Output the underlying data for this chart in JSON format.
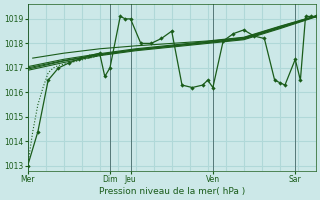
{
  "background_color": "#cce8e8",
  "grid_color": "#b0d8d8",
  "line_color": "#1a5c1a",
  "text_color": "#1a5c1a",
  "xlabel": "Pression niveau de la mer( hPa )",
  "ylim": [
    1012.8,
    1019.6
  ],
  "yticks": [
    1013,
    1014,
    1015,
    1016,
    1017,
    1018,
    1019
  ],
  "day_labels": [
    "Mer",
    "Dim",
    "Jeu",
    "Ven",
    "Sar"
  ],
  "day_positions": [
    0,
    96,
    120,
    216,
    312
  ],
  "day_vline_positions": [
    0,
    96,
    120,
    216,
    312
  ],
  "xlim": [
    0,
    336
  ],
  "total_hours": 336,
  "dotted_line_x": [
    0,
    6,
    12,
    18,
    24,
    30,
    36,
    42,
    48,
    54,
    60,
    66,
    72,
    78,
    84,
    90,
    96
  ],
  "dotted_line_y": [
    1013.0,
    1014.4,
    1015.5,
    1016.2,
    1016.8,
    1017.0,
    1017.1,
    1017.15,
    1017.2,
    1017.25,
    1017.3,
    1017.35,
    1017.4,
    1017.45,
    1017.5,
    1017.55,
    1017.6
  ],
  "smooth_lines": [
    {
      "x": [
        0,
        42,
        84,
        126,
        168,
        210,
        252,
        294,
        336
      ],
      "y": [
        1017.0,
        1017.3,
        1017.55,
        1017.75,
        1017.9,
        1018.05,
        1018.2,
        1018.65,
        1019.1
      ]
    },
    {
      "x": [
        0,
        42,
        84,
        126,
        168,
        210,
        252,
        294,
        336
      ],
      "y": [
        1017.05,
        1017.35,
        1017.58,
        1017.78,
        1017.93,
        1018.08,
        1018.23,
        1018.68,
        1019.12
      ]
    },
    {
      "x": [
        0,
        42,
        84,
        126,
        168,
        210,
        252,
        294,
        336
      ],
      "y": [
        1016.9,
        1017.22,
        1017.5,
        1017.7,
        1017.85,
        1018.0,
        1018.15,
        1018.6,
        1019.08
      ]
    },
    {
      "x": [
        0,
        42,
        84,
        126,
        168,
        210,
        252,
        294,
        336
      ],
      "y": [
        1016.95,
        1017.28,
        1017.53,
        1017.73,
        1017.88,
        1018.03,
        1018.18,
        1018.63,
        1019.1
      ]
    },
    {
      "x": [
        6,
        42,
        84,
        126,
        168,
        210,
        252,
        294,
        336
      ],
      "y": [
        1017.4,
        1017.6,
        1017.78,
        1017.9,
        1018.0,
        1018.1,
        1018.25,
        1018.7,
        1019.12
      ]
    }
  ],
  "main_line_x": [
    0,
    12,
    24,
    36,
    48,
    60,
    72,
    84,
    90,
    96,
    108,
    114,
    120,
    132,
    144,
    156,
    168,
    180,
    192,
    204,
    210,
    216,
    228,
    240,
    252,
    264,
    276,
    288,
    294,
    300,
    312,
    318,
    324,
    330,
    336
  ],
  "main_line_y": [
    1013.0,
    1014.4,
    1016.5,
    1017.0,
    1017.2,
    1017.35,
    1017.5,
    1017.6,
    1016.65,
    1017.0,
    1019.1,
    1019.0,
    1019.0,
    1018.0,
    1018.0,
    1018.2,
    1018.5,
    1016.3,
    1016.2,
    1016.3,
    1016.5,
    1016.2,
    1018.1,
    1018.4,
    1018.55,
    1018.3,
    1018.2,
    1016.5,
    1016.4,
    1016.3,
    1017.35,
    1016.5,
    1019.1,
    1019.1,
    1019.1
  ]
}
